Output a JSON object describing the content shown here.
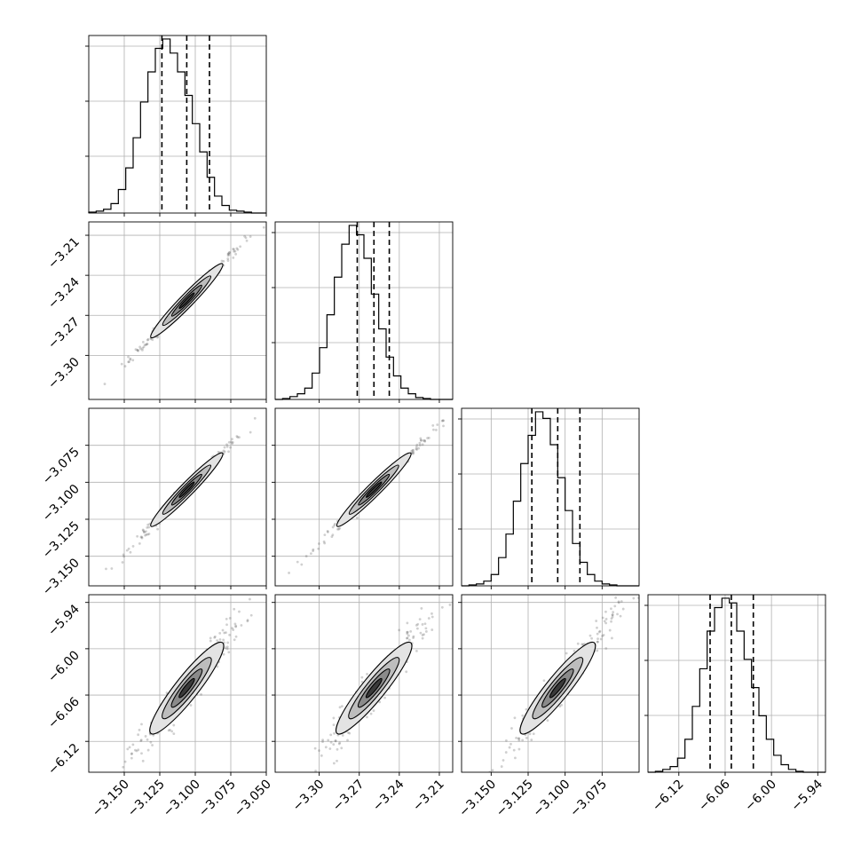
{
  "chart_data": {
    "type": "corner",
    "title": "",
    "parameters": [
      {
        "name": "",
        "range": [
          -3.175,
          -3.05
        ],
        "ticks": [
          -3.15,
          -3.125,
          -3.1,
          -3.075,
          -3.05
        ],
        "tick_labels": [
          "−3.150",
          "−3.125",
          "−3.100",
          "−3.075",
          "−3.050"
        ],
        "quantiles": [
          -3.1235,
          -3.106,
          -3.09
        ],
        "mean": -3.106,
        "sigma": 0.0105
      },
      {
        "name": "",
        "range": [
          -3.333,
          -3.2
        ],
        "ticks": [
          -3.3,
          -3.27,
          -3.24,
          -3.21
        ],
        "tick_labels": [
          "−3.30",
          "−3.27",
          "−3.24",
          "−3.21"
        ],
        "quantiles": [
          -3.2715,
          -3.259,
          -3.2475
        ],
        "mean": -3.259,
        "sigma": 0.0115
      },
      {
        "name": "",
        "range": [
          -3.17,
          -3.05
        ],
        "ticks": [
          -3.15,
          -3.125,
          -3.1,
          -3.075
        ],
        "tick_labels": [
          "−3.150",
          "−3.125",
          "−3.100",
          "−3.075"
        ],
        "quantiles": [
          -3.1225,
          -3.105,
          -3.09
        ],
        "mean": -3.105,
        "sigma": 0.0103
      },
      {
        "name": "",
        "range": [
          -6.16,
          -5.93
        ],
        "ticks": [
          -6.12,
          -6.06,
          -6.0,
          -5.94
        ],
        "tick_labels": [
          "−6.12",
          "−6.06",
          "−6.00",
          "−5.94"
        ],
        "quantiles": [
          -6.0795,
          -6.052,
          -6.0235
        ],
        "mean": -6.051,
        "sigma": 0.0245
      }
    ],
    "histograms": [
      {
        "bins": 24,
        "counts": [
          1,
          2,
          4,
          10,
          25,
          48,
          80,
          118,
          150,
          175,
          185,
          170,
          150,
          125,
          95,
          65,
          38,
          18,
          8,
          3,
          2,
          1,
          0,
          0
        ]
      },
      {
        "bins": 24,
        "counts": [
          0,
          1,
          3,
          6,
          12,
          28,
          55,
          90,
          130,
          165,
          185,
          175,
          150,
          112,
          75,
          45,
          25,
          12,
          6,
          2,
          1,
          0,
          0,
          0
        ]
      },
      {
        "bins": 24,
        "counts": [
          0,
          1,
          2,
          5,
          12,
          30,
          55,
          90,
          130,
          160,
          185,
          178,
          150,
          115,
          80,
          45,
          25,
          12,
          5,
          2,
          1,
          0,
          0,
          0
        ]
      },
      {
        "bins": 24,
        "counts": [
          0,
          1,
          3,
          6,
          15,
          35,
          70,
          110,
          150,
          175,
          185,
          180,
          150,
          120,
          90,
          60,
          35,
          18,
          8,
          3,
          1,
          0,
          0,
          0
        ]
      }
    ],
    "correlation": 0.995,
    "grid": true,
    "legend": "none"
  }
}
